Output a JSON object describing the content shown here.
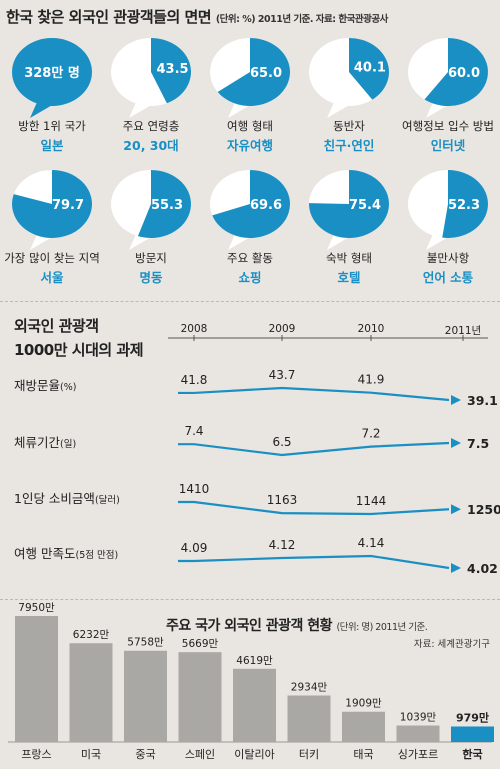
{
  "section1": {
    "title": "한국 찾은 외국인 관광객들의 면면",
    "unit_note": "(단위: %) 2011년 기준. 자료: 한국관광공사",
    "bubbles": [
      {
        "label": "방한 1위 국가",
        "value_text": "일본",
        "big_text": "328만 명",
        "percent": null
      },
      {
        "label": "주요 연령층",
        "value_text": "20, 30대",
        "big_text": "43.5",
        "percent": 43.5
      },
      {
        "label": "여행 형태",
        "value_text": "자유여행",
        "big_text": "65.0",
        "percent": 65.0
      },
      {
        "label": "동반자",
        "value_text": "친구·연인",
        "big_text": "40.1",
        "percent": 40.1
      },
      {
        "label": "여행정보 입수 방법",
        "value_text": "인터넷",
        "big_text": "60.0",
        "percent": 60.0
      },
      {
        "label": "가장 많이 찾는 지역",
        "value_text": "서울",
        "big_text": "79.7",
        "percent": 79.7
      },
      {
        "label": "방문지",
        "value_text": "명동",
        "big_text": "55.3",
        "percent": 55.3
      },
      {
        "label": "주요 활동",
        "value_text": "쇼핑",
        "big_text": "69.6",
        "percent": 69.6
      },
      {
        "label": "숙박 형태",
        "value_text": "호텔",
        "big_text": "75.4",
        "percent": 75.4
      },
      {
        "label": "불만사항",
        "value_text": "언어 소통",
        "big_text": "52.3",
        "percent": 52.3
      }
    ]
  },
  "section2": {
    "title_line1": "외국인 관광객",
    "title_line2": "1000만 시대의 과제",
    "years": [
      "2008",
      "2009",
      "2010",
      "2011년"
    ],
    "metrics": [
      {
        "name": "재방문율",
        "unit": "(%)",
        "values": [
          "41.8",
          "43.7",
          "41.9",
          "39.1"
        ]
      },
      {
        "name": "체류기간",
        "unit": "(일)",
        "values": [
          "7.4",
          "6.5",
          "7.2",
          "7.5"
        ]
      },
      {
        "name": "1인당 소비금액",
        "unit": "(달러)",
        "values": [
          "1410",
          "1163",
          "1144",
          "1250"
        ]
      },
      {
        "name": "여행 만족도",
        "unit": "(5점 만점)",
        "values": [
          "4.09",
          "4.12",
          "4.14",
          "4.02"
        ]
      }
    ]
  },
  "section3": {
    "title": "주요 국가 외국인 관광객 현황",
    "unit_note": "(단위: 명) 2011년 기준.",
    "source": "자료: 세계관광기구"
  },
  "colors": {
    "accent": "#1a8fc4",
    "background": "#e9e6e1",
    "bar": "#a9a8a5"
  },
  "chart_data": [
    {
      "type": "line",
      "x": [
        "2008",
        "2009",
        "2010",
        "2011"
      ],
      "series": [
        {
          "name": "재방문율(%)",
          "values": [
            41.8,
            43.7,
            41.9,
            39.1
          ]
        },
        {
          "name": "체류기간(일)",
          "values": [
            7.4,
            6.5,
            7.2,
            7.5
          ]
        },
        {
          "name": "1인당 소비금액(달러)",
          "values": [
            1410,
            1163,
            1144,
            1250
          ]
        },
        {
          "name": "여행 만족도(5점 만점)",
          "values": [
            4.09,
            4.12,
            4.14,
            4.02
          ]
        }
      ]
    },
    {
      "type": "bar",
      "title": "주요 국가 외국인 관광객 현황",
      "categories": [
        "프랑스",
        "미국",
        "중국",
        "스페인",
        "이탈리아",
        "터키",
        "태국",
        "싱가포르",
        "한국"
      ],
      "values": [
        7950,
        6232,
        5758,
        5669,
        4619,
        2934,
        1909,
        1039,
        979
      ],
      "value_labels": [
        "7950만",
        "6232만",
        "5758만",
        "5669만",
        "4619만",
        "2934만",
        "1909만",
        "1039만",
        "979만"
      ]
    }
  ]
}
